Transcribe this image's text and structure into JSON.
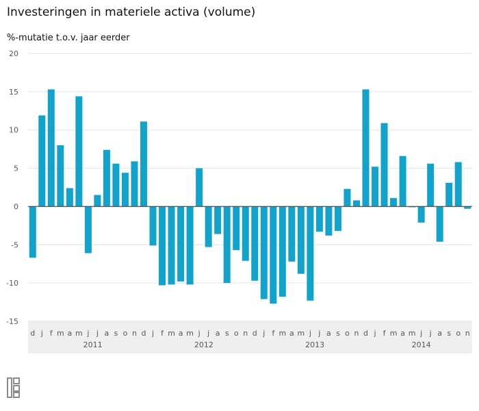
{
  "title": "Investeringen in materiele activa (volume)",
  "subtitle": "%-mutatie t.o.v. jaar eerder",
  "logo_text": "cbs",
  "colors": {
    "bar": "#12a3cc",
    "grid": "#e3e3e3",
    "zero": "#555555",
    "band": "#efefef",
    "text": "#555555"
  },
  "chart_data": {
    "type": "bar",
    "title": "Investeringen in materiele activa (volume)",
    "ylabel": "%-mutatie t.o.v. jaar eerder",
    "ylim": [
      -15,
      20
    ],
    "yticks": [
      20,
      15,
      10,
      5,
      0,
      -5,
      -10,
      -15
    ],
    "grid": true,
    "categories": [
      "d",
      "j",
      "f",
      "m",
      "a",
      "m",
      "j",
      "j",
      "a",
      "s",
      "o",
      "n",
      "d",
      "j",
      "f",
      "m",
      "a",
      "m",
      "j",
      "j",
      "a",
      "s",
      "o",
      "n",
      "d",
      "j",
      "f",
      "m",
      "a",
      "m",
      "j",
      "j",
      "a",
      "s",
      "o",
      "n",
      "d",
      "j",
      "f",
      "m",
      "a",
      "m",
      "j",
      "j",
      "a",
      "s",
      "o",
      "n"
    ],
    "years": [
      {
        "label": "2011",
        "start": 1,
        "end": 12
      },
      {
        "label": "2012",
        "start": 13,
        "end": 24
      },
      {
        "label": "2013",
        "start": 25,
        "end": 36
      },
      {
        "label": "2014",
        "start": 37,
        "end": 47
      }
    ],
    "values": [
      -6.7,
      11.9,
      15.3,
      8.0,
      2.4,
      14.4,
      -6.1,
      1.5,
      7.4,
      5.6,
      4.4,
      5.9,
      11.1,
      -5.1,
      -10.3,
      -10.2,
      -9.8,
      -10.2,
      5.0,
      -5.3,
      -3.6,
      -10.0,
      -5.7,
      -7.1,
      -9.7,
      -12.1,
      -12.7,
      -11.8,
      -7.2,
      -8.8,
      -12.3,
      -3.3,
      -3.8,
      -3.2,
      2.3,
      0.8,
      15.3,
      5.2,
      10.9,
      1.1,
      6.6,
      -0.1,
      -2.1,
      5.6,
      -4.6,
      3.1,
      5.8,
      -0.3
    ]
  }
}
